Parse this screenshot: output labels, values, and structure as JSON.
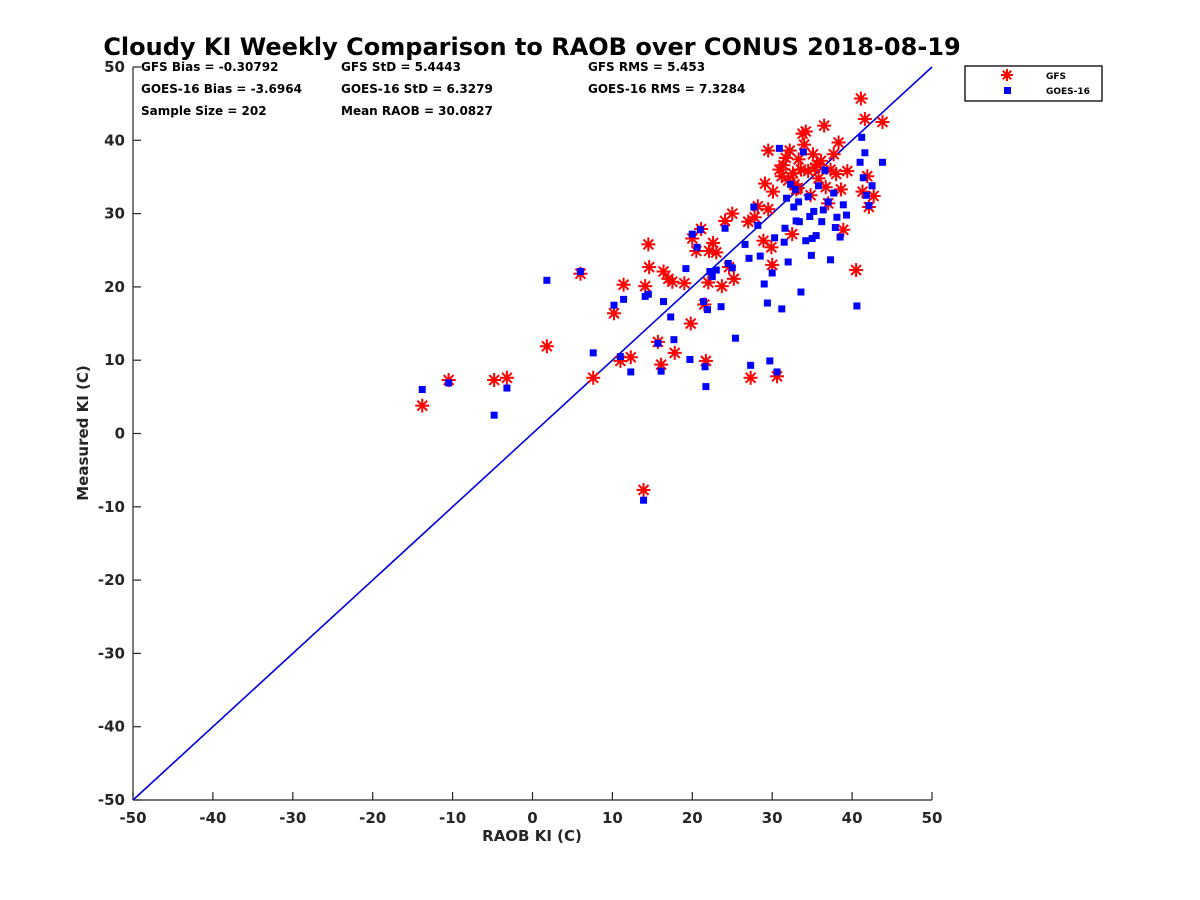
{
  "chart_data": {
    "type": "scatter",
    "title": "Cloudy KI Weekly Comparison to RAOB over CONUS 2018-08-19",
    "xlabel": "RAOB KI (C)",
    "ylabel": "Measured KI (C)",
    "xlim": [
      -50,
      50
    ],
    "ylim": [
      -50,
      50
    ],
    "xticks": [
      "-50",
      "-40",
      "-30",
      "-20",
      "-10",
      "0",
      "10",
      "20",
      "30",
      "40",
      "50"
    ],
    "yticks": [
      "-50",
      "-40",
      "-30",
      "-20",
      "-10",
      "0",
      "10",
      "20",
      "30",
      "40",
      "50"
    ],
    "grid": false,
    "legend_position": "outside-top-right",
    "reference_line": {
      "x": [
        -50,
        50
      ],
      "y": [
        -50,
        50
      ],
      "color": "#0000dd"
    },
    "stats": [
      "GFS Bias = -0.30792",
      "GFS StD = 5.4443",
      "GFS RMS = 5.453",
      "GOES-16 Bias = -3.6964",
      "GOES-16 StD = 6.3279",
      "GOES-16 RMS = 7.3284",
      "Sample Size = 202",
      "Mean RAOB = 30.0827"
    ],
    "series": [
      {
        "name": "GFS",
        "marker": "asterisk",
        "color": "#ff0000",
        "points": [
          [
            -13.8,
            3.8
          ],
          [
            -10.5,
            7.3
          ],
          [
            -4.8,
            7.3
          ],
          [
            -3.2,
            7.6
          ],
          [
            1.8,
            11.9
          ],
          [
            6.0,
            21.8
          ],
          [
            7.6,
            7.6
          ],
          [
            10.2,
            16.4
          ],
          [
            11.0,
            9.9
          ],
          [
            11.4,
            20.3
          ],
          [
            12.3,
            10.4
          ],
          [
            13.9,
            -7.7
          ],
          [
            14.1,
            20.1
          ],
          [
            14.5,
            25.8
          ],
          [
            14.6,
            22.7
          ],
          [
            15.7,
            12.5
          ],
          [
            16.1,
            9.4
          ],
          [
            16.4,
            22.1
          ],
          [
            17.0,
            21.1
          ],
          [
            17.5,
            20.7
          ],
          [
            17.8,
            11.0
          ],
          [
            19.0,
            20.5
          ],
          [
            19.8,
            15.0
          ],
          [
            20.0,
            26.6
          ],
          [
            20.5,
            24.9
          ],
          [
            21.1,
            27.9
          ],
          [
            21.5,
            17.6
          ],
          [
            21.7,
            9.9
          ],
          [
            22.0,
            20.6
          ],
          [
            22.1,
            24.9
          ],
          [
            22.6,
            26.0
          ],
          [
            23.0,
            24.7
          ],
          [
            23.7,
            20.1
          ],
          [
            24.1,
            29.0
          ],
          [
            24.6,
            22.7
          ],
          [
            25.0,
            30.0
          ],
          [
            25.2,
            21.1
          ],
          [
            27.0,
            28.9
          ],
          [
            27.3,
            7.6
          ],
          [
            27.8,
            29.5
          ],
          [
            28.2,
            31.0
          ],
          [
            28.9,
            26.3
          ],
          [
            29.1,
            34.1
          ],
          [
            29.5,
            38.6
          ],
          [
            29.5,
            30.6
          ],
          [
            30.0,
            23.0
          ],
          [
            30.1,
            33.0
          ],
          [
            30.6,
            7.8
          ],
          [
            30.9,
            36.0
          ],
          [
            31.2,
            35.1
          ],
          [
            31.7,
            37.6
          ],
          [
            32.0,
            34.5
          ],
          [
            32.2,
            38.6
          ],
          [
            32.6,
            35.5
          ],
          [
            33.0,
            33.3
          ],
          [
            33.3,
            37.4
          ],
          [
            33.8,
            40.9
          ],
          [
            34.2,
            41.2
          ],
          [
            34.5,
            35.8
          ],
          [
            34.8,
            32.5
          ],
          [
            35.1,
            38.1
          ],
          [
            35.4,
            36.3
          ],
          [
            35.8,
            34.8
          ],
          [
            36.1,
            37.2
          ],
          [
            36.5,
            42.0
          ],
          [
            36.7,
            33.6
          ],
          [
            37.0,
            31.4
          ],
          [
            37.3,
            36.0
          ],
          [
            37.7,
            38.1
          ],
          [
            38.0,
            35.4
          ],
          [
            38.3,
            39.7
          ],
          [
            38.6,
            33.3
          ],
          [
            38.9,
            27.8
          ],
          [
            39.4,
            35.8
          ],
          [
            40.5,
            22.3
          ],
          [
            41.1,
            45.7
          ],
          [
            41.3,
            33.0
          ],
          [
            41.6,
            42.9
          ],
          [
            41.9,
            35.1
          ],
          [
            42.1,
            30.9
          ],
          [
            42.7,
            32.4
          ],
          [
            43.8,
            42.5
          ],
          [
            33.2,
            33.5
          ],
          [
            34.0,
            39.4
          ],
          [
            35.6,
            36.7
          ],
          [
            31.4,
            36.6
          ],
          [
            33.6,
            36.0
          ],
          [
            32.8,
            34.0
          ],
          [
            29.9,
            25.4
          ],
          [
            32.5,
            27.2
          ]
        ]
      },
      {
        "name": "GOES-16",
        "marker": "square",
        "color": "#0000ff",
        "points": [
          [
            -13.8,
            6.0
          ],
          [
            -10.5,
            6.9
          ],
          [
            -4.8,
            2.5
          ],
          [
            -3.2,
            6.2
          ],
          [
            1.8,
            20.9
          ],
          [
            6.0,
            22.1
          ],
          [
            7.6,
            11.0
          ],
          [
            10.2,
            17.5
          ],
          [
            11.0,
            10.5
          ],
          [
            11.4,
            18.3
          ],
          [
            12.3,
            8.4
          ],
          [
            13.9,
            -9.1
          ],
          [
            14.1,
            18.7
          ],
          [
            14.5,
            19.0
          ],
          [
            15.7,
            12.3
          ],
          [
            16.1,
            8.5
          ],
          [
            16.4,
            18.0
          ],
          [
            17.3,
            15.9
          ],
          [
            17.7,
            12.8
          ],
          [
            19.2,
            22.5
          ],
          [
            19.7,
            10.1
          ],
          [
            20.0,
            27.2
          ],
          [
            20.6,
            25.4
          ],
          [
            21.0,
            27.8
          ],
          [
            21.4,
            18.0
          ],
          [
            21.6,
            9.1
          ],
          [
            21.7,
            6.4
          ],
          [
            21.9,
            16.9
          ],
          [
            22.2,
            22.1
          ],
          [
            22.5,
            21.4
          ],
          [
            23.0,
            22.3
          ],
          [
            23.6,
            17.3
          ],
          [
            24.1,
            28.0
          ],
          [
            24.5,
            23.2
          ],
          [
            25.0,
            22.6
          ],
          [
            25.4,
            13.0
          ],
          [
            26.6,
            25.8
          ],
          [
            27.1,
            23.9
          ],
          [
            27.3,
            9.3
          ],
          [
            27.7,
            30.9
          ],
          [
            28.2,
            28.4
          ],
          [
            28.5,
            24.2
          ],
          [
            29.0,
            20.4
          ],
          [
            29.4,
            17.8
          ],
          [
            29.7,
            9.9
          ],
          [
            30.0,
            21.9
          ],
          [
            30.3,
            26.7
          ],
          [
            30.6,
            8.4
          ],
          [
            30.9,
            38.9
          ],
          [
            31.2,
            17.0
          ],
          [
            31.6,
            28.0
          ],
          [
            32.0,
            23.4
          ],
          [
            32.3,
            34.0
          ],
          [
            32.7,
            30.9
          ],
          [
            33.0,
            29.0
          ],
          [
            33.3,
            31.6
          ],
          [
            33.6,
            19.3
          ],
          [
            33.9,
            38.4
          ],
          [
            34.2,
            26.3
          ],
          [
            34.5,
            32.3
          ],
          [
            34.9,
            24.3
          ],
          [
            35.2,
            30.3
          ],
          [
            35.5,
            27.0
          ],
          [
            35.8,
            33.8
          ],
          [
            36.2,
            28.9
          ],
          [
            36.6,
            35.9
          ],
          [
            37.0,
            31.6
          ],
          [
            37.3,
            23.7
          ],
          [
            37.7,
            32.8
          ],
          [
            38.1,
            29.5
          ],
          [
            38.5,
            26.8
          ],
          [
            38.9,
            31.2
          ],
          [
            39.3,
            29.8
          ],
          [
            40.6,
            17.4
          ],
          [
            41.0,
            37.0
          ],
          [
            41.2,
            40.4
          ],
          [
            41.4,
            34.9
          ],
          [
            41.6,
            38.3
          ],
          [
            41.8,
            32.5
          ],
          [
            42.1,
            31.1
          ],
          [
            42.5,
            33.8
          ],
          [
            43.8,
            37.0
          ],
          [
            31.8,
            32.1
          ],
          [
            32.9,
            33.3
          ],
          [
            34.7,
            29.6
          ],
          [
            36.4,
            30.5
          ],
          [
            35.0,
            26.6
          ],
          [
            33.4,
            28.9
          ],
          [
            31.5,
            26.1
          ],
          [
            37.9,
            28.1
          ]
        ]
      }
    ]
  }
}
